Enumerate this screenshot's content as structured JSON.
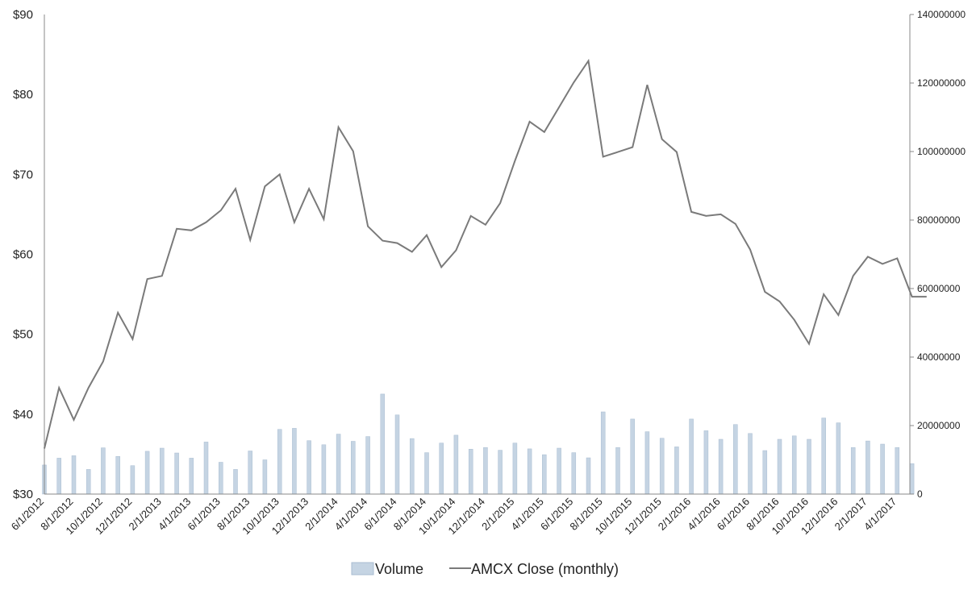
{
  "chart_data": {
    "type": "bar+line",
    "title": "",
    "colors": {
      "volume": "#c5d4e3",
      "volume_edge": "#a9bdd1",
      "close": "#7a7a7a",
      "axis": "#888888"
    },
    "y_left": {
      "min": 30,
      "max": 90,
      "ticks": [
        "$30",
        "$40",
        "$50",
        "$60",
        "$70",
        "$80",
        "$90"
      ]
    },
    "y_right": {
      "min": 0,
      "max": 140000000,
      "ticks": [
        "0",
        "20000000",
        "40000000",
        "60000000",
        "80000000",
        "100000000",
        "120000000",
        "140000000"
      ]
    },
    "x_tick_labels": [
      "6/1/2012",
      "8/1/2012",
      "10/1/2012",
      "12/1/2012",
      "2/1/2013",
      "4/1/2013",
      "6/1/2013",
      "8/1/2013",
      "10/1/2013",
      "12/1/2013",
      "2/1/2014",
      "4/1/2014",
      "6/1/2014",
      "8/1/2014",
      "10/1/2014",
      "12/1/2014",
      "2/1/2015",
      "4/1/2015",
      "6/1/2015",
      "8/1/2015",
      "10/1/2015",
      "12/1/2015",
      "2/1/2016",
      "4/1/2016",
      "6/1/2016",
      "8/1/2016",
      "10/1/2016",
      "12/1/2016",
      "2/1/2017",
      "4/1/2017"
    ],
    "months": [
      "6/1/2012",
      "7/1/2012",
      "8/1/2012",
      "9/1/2012",
      "10/1/2012",
      "11/1/2012",
      "12/1/2012",
      "1/1/2013",
      "2/1/2013",
      "3/1/2013",
      "4/1/2013",
      "5/1/2013",
      "6/1/2013",
      "7/1/2013",
      "8/1/2013",
      "9/1/2013",
      "10/1/2013",
      "11/1/2013",
      "12/1/2013",
      "1/1/2014",
      "2/1/2014",
      "3/1/2014",
      "4/1/2014",
      "5/1/2014",
      "6/1/2014",
      "7/1/2014",
      "8/1/2014",
      "9/1/2014",
      "10/1/2014",
      "11/1/2014",
      "12/1/2014",
      "1/1/2015",
      "2/1/2015",
      "3/1/2015",
      "4/1/2015",
      "5/1/2015",
      "6/1/2015",
      "7/1/2015",
      "8/1/2015",
      "9/1/2015",
      "10/1/2015",
      "11/1/2015",
      "12/1/2015",
      "1/1/2016",
      "2/1/2016",
      "3/1/2016",
      "4/1/2016",
      "5/1/2016",
      "6/1/2016",
      "7/1/2016",
      "8/1/2016",
      "9/1/2016",
      "10/1/2016",
      "11/1/2016",
      "12/1/2016",
      "1/1/2017",
      "2/1/2017",
      "3/1/2017",
      "4/1/2017",
      "5/1/2017",
      "6/1/2017"
    ],
    "series": [
      {
        "name": "Volume",
        "type": "bar",
        "axis": "right",
        "values": [
          8500000,
          10500000,
          11200000,
          7200000,
          13500000,
          11000000,
          8300000,
          12500000,
          13400000,
          12000000,
          10500000,
          15200000,
          9300000,
          7200000,
          12600000,
          10000000,
          18900000,
          19200000,
          15600000,
          14400000,
          17500000,
          15400000,
          16800000,
          29200000,
          23100000,
          16200000,
          12100000,
          14900000,
          17200000,
          13100000,
          13600000,
          12800000,
          14900000,
          13200000,
          11500000,
          13400000,
          12100000,
          10600000,
          24000000,
          13600000,
          21900000,
          18200000,
          16300000,
          13800000,
          21900000,
          18500000,
          16000000,
          20300000,
          17700000,
          12700000,
          16000000,
          17000000,
          16000000,
          22200000,
          20800000,
          13600000,
          15500000,
          14600000,
          13600000,
          8900000,
          null
        ]
      },
      {
        "name": "AMCX Close (monthly)",
        "type": "line",
        "axis": "left",
        "values": [
          35.7,
          43.3,
          39.3,
          43.3,
          46.6,
          52.7,
          49.4,
          56.9,
          57.3,
          63.2,
          63.0,
          64.0,
          65.5,
          68.2,
          61.8,
          68.5,
          70.0,
          64.0,
          68.2,
          64.4,
          75.9,
          72.9,
          63.5,
          61.7,
          61.4,
          60.3,
          62.4,
          58.4,
          60.5,
          64.8,
          63.7,
          66.4,
          71.7,
          76.6,
          75.3,
          78.4,
          81.5,
          84.2,
          72.2,
          72.8,
          73.4,
          81.2,
          74.4,
          72.8,
          65.3,
          64.8,
          65.0,
          63.8,
          60.6,
          55.3,
          54.1,
          51.8,
          48.8,
          55.0,
          52.4,
          57.3,
          59.7,
          58.8,
          59.5,
          54.7,
          54.7
        ]
      }
    ],
    "legend": {
      "position": "bottom-center",
      "items": [
        "Volume",
        "AMCX Close (monthly)"
      ]
    },
    "grid": false
  }
}
